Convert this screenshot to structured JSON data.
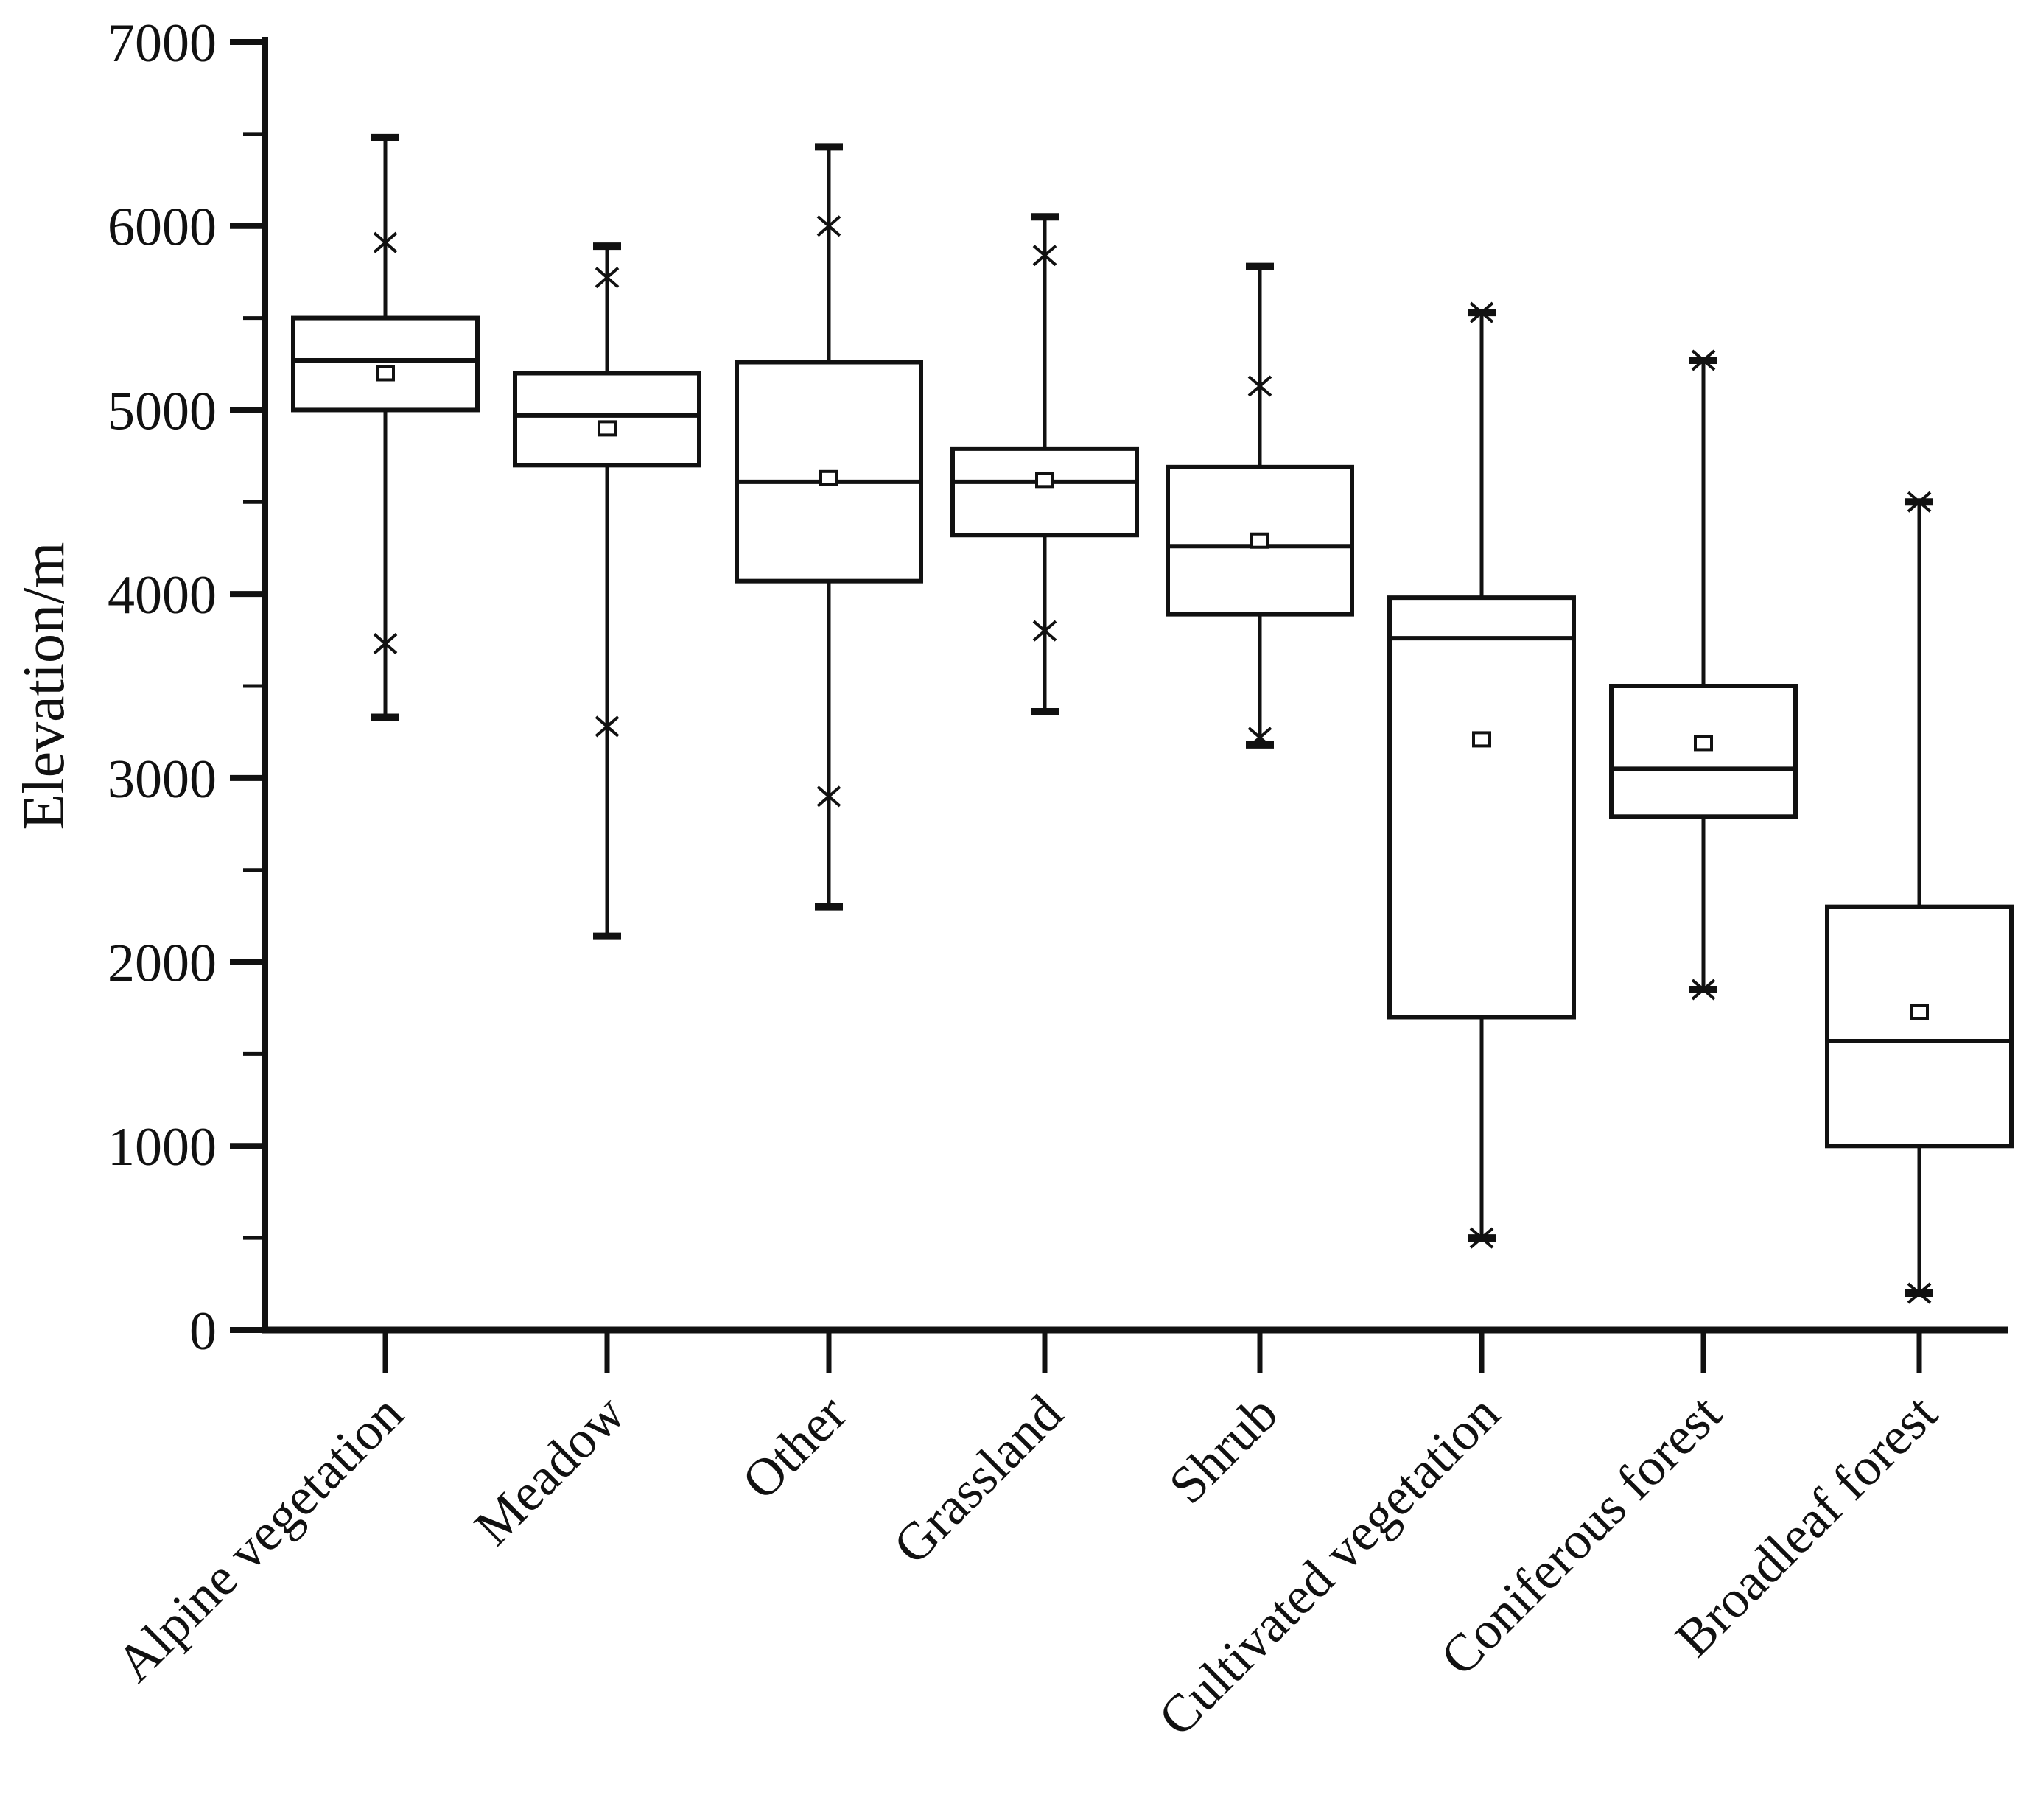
{
  "chart_data": {
    "type": "box",
    "title": "",
    "xlabel": "",
    "ylabel": "Elevation/m",
    "ylim": [
      0,
      7000
    ],
    "y_major_step": 1000,
    "y_minor_step": 500,
    "y_major_ticks": [
      0,
      1000,
      2000,
      3000,
      4000,
      5000,
      6000,
      7000
    ],
    "grid": "off",
    "legend": "none",
    "marker_semantics": {
      "box": "interquartile range (Q1-Q3)",
      "horizontal_line_in_box": "median",
      "small_open_square": "mean",
      "x_marker": "1st / 99th percentile",
      "whisker_cap": "min / max"
    },
    "categories": [
      "Alpine vegetation",
      "Meadow",
      "Other",
      "Grassland",
      "Shrub",
      "Cultivated vegetation",
      "Coniferous forest",
      "Broadleaf forest"
    ],
    "series": [
      {
        "name": "Alpine vegetation",
        "whisker_low": 3330,
        "x_low": 3730,
        "q1": 5000,
        "median": 5270,
        "mean": 5200,
        "q3": 5500,
        "x_high": 5910,
        "whisker_high": 6480
      },
      {
        "name": "Meadow",
        "whisker_low": 2140,
        "x_low": 3280,
        "q1": 4700,
        "median": 4970,
        "mean": 4900,
        "q3": 5200,
        "x_high": 5720,
        "whisker_high": 5890
      },
      {
        "name": "Other",
        "whisker_low": 2300,
        "x_low": 2900,
        "q1": 4070,
        "median": 4610,
        "mean": 4630,
        "q3": 5260,
        "x_high": 6000,
        "whisker_high": 6430
      },
      {
        "name": "Grassland",
        "whisker_low": 3360,
        "x_low": 3800,
        "q1": 4320,
        "median": 4610,
        "mean": 4620,
        "q3": 4790,
        "x_high": 5840,
        "whisker_high": 6050
      },
      {
        "name": "Shrub",
        "whisker_low": 3180,
        "x_low": 3220,
        "q1": 3890,
        "median": 4260,
        "mean": 4290,
        "q3": 4690,
        "x_high": 5130,
        "whisker_high": 5780
      },
      {
        "name": "Cultivated vegetation",
        "whisker_low": 500,
        "x_low": 500,
        "q1": 1700,
        "median": 3760,
        "mean": 3210,
        "q3": 3980,
        "x_high": 5530,
        "whisker_high": 5530
      },
      {
        "name": "Coniferous forest",
        "whisker_low": 1850,
        "x_low": 1850,
        "q1": 2790,
        "median": 3050,
        "mean": 3190,
        "q3": 3500,
        "x_high": 5270,
        "whisker_high": 5270
      },
      {
        "name": "Broadleaf forest",
        "whisker_low": 200,
        "x_low": 200,
        "q1": 1000,
        "median": 1570,
        "mean": 1730,
        "q3": 2300,
        "x_high": 4500,
        "whisker_high": 4500
      }
    ],
    "colors": {
      "ink": "#111111",
      "background": "#ffffff"
    }
  }
}
